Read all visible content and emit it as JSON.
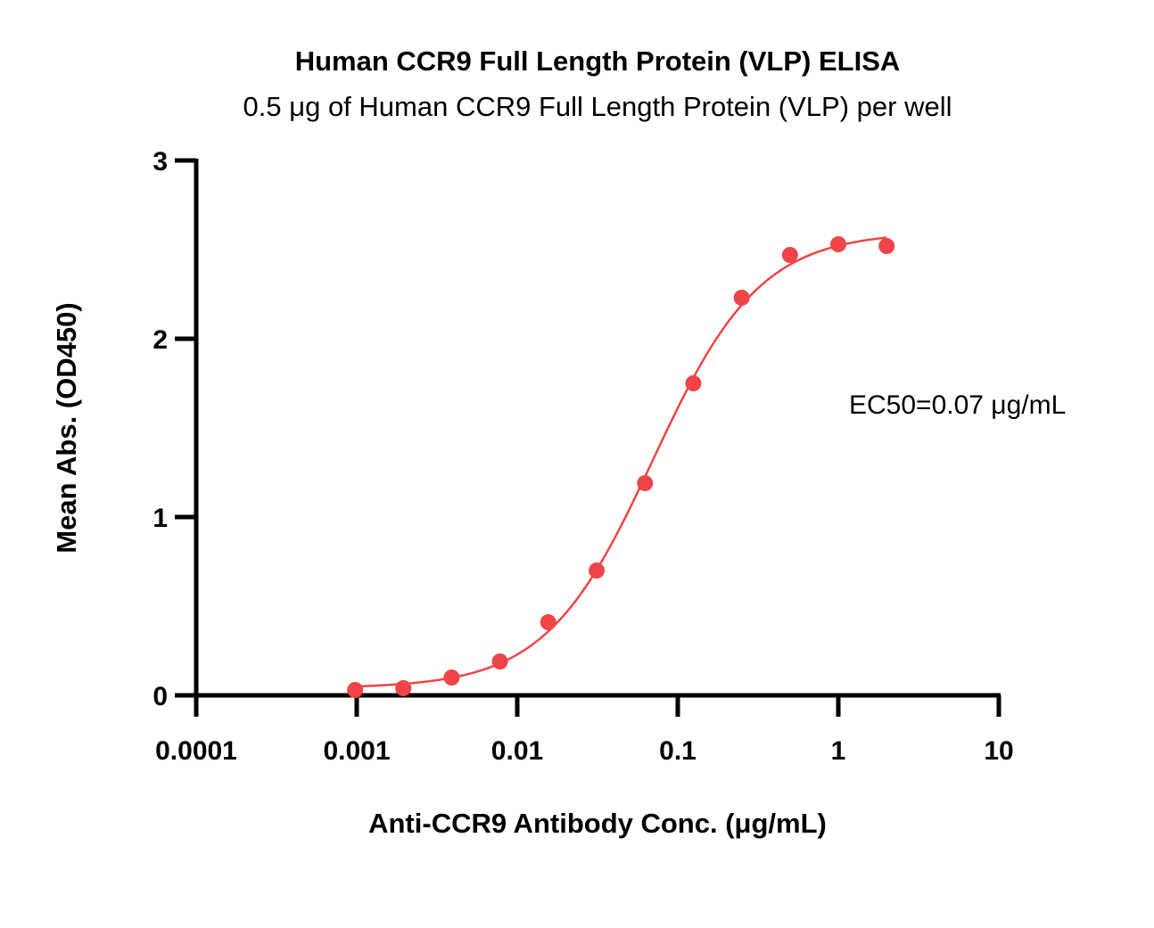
{
  "chart_data": {
    "type": "scatter",
    "title": "Human CCR9 Full Length Protein (VLP) ELISA",
    "subtitle": "0.5 μg of Human CCR9 Full Length Protein (VLP) per well",
    "xlabel": "Anti-CCR9 Antibody Conc. (μg/mL)",
    "ylabel": "Mean Abs. (OD450)",
    "x_scale": "log",
    "xlim": [
      0.0001,
      10
    ],
    "ylim": [
      0,
      3
    ],
    "x_ticks": [
      "0.0001",
      "0.001",
      "0.01",
      "0.1",
      "1",
      "10"
    ],
    "y_ticks": [
      "0",
      "1",
      "2",
      "3"
    ],
    "grid": false,
    "color": "#f04448",
    "annotation": "EC50=0.07 μg/mL",
    "series": [
      {
        "x": [
          0.000977,
          0.00195,
          0.0039,
          0.0078,
          0.0156,
          0.03125,
          0.0625,
          0.125,
          0.25,
          0.5,
          1,
          2
        ],
        "y": [
          0.03,
          0.04,
          0.1,
          0.19,
          0.41,
          0.7,
          1.19,
          1.75,
          2.23,
          2.47,
          2.53,
          2.52
        ]
      }
    ],
    "fit_curve": {
      "model": "4PL",
      "bottom": 0.04,
      "top": 2.6,
      "ec50": 0.07,
      "hill": 1.3
    }
  }
}
